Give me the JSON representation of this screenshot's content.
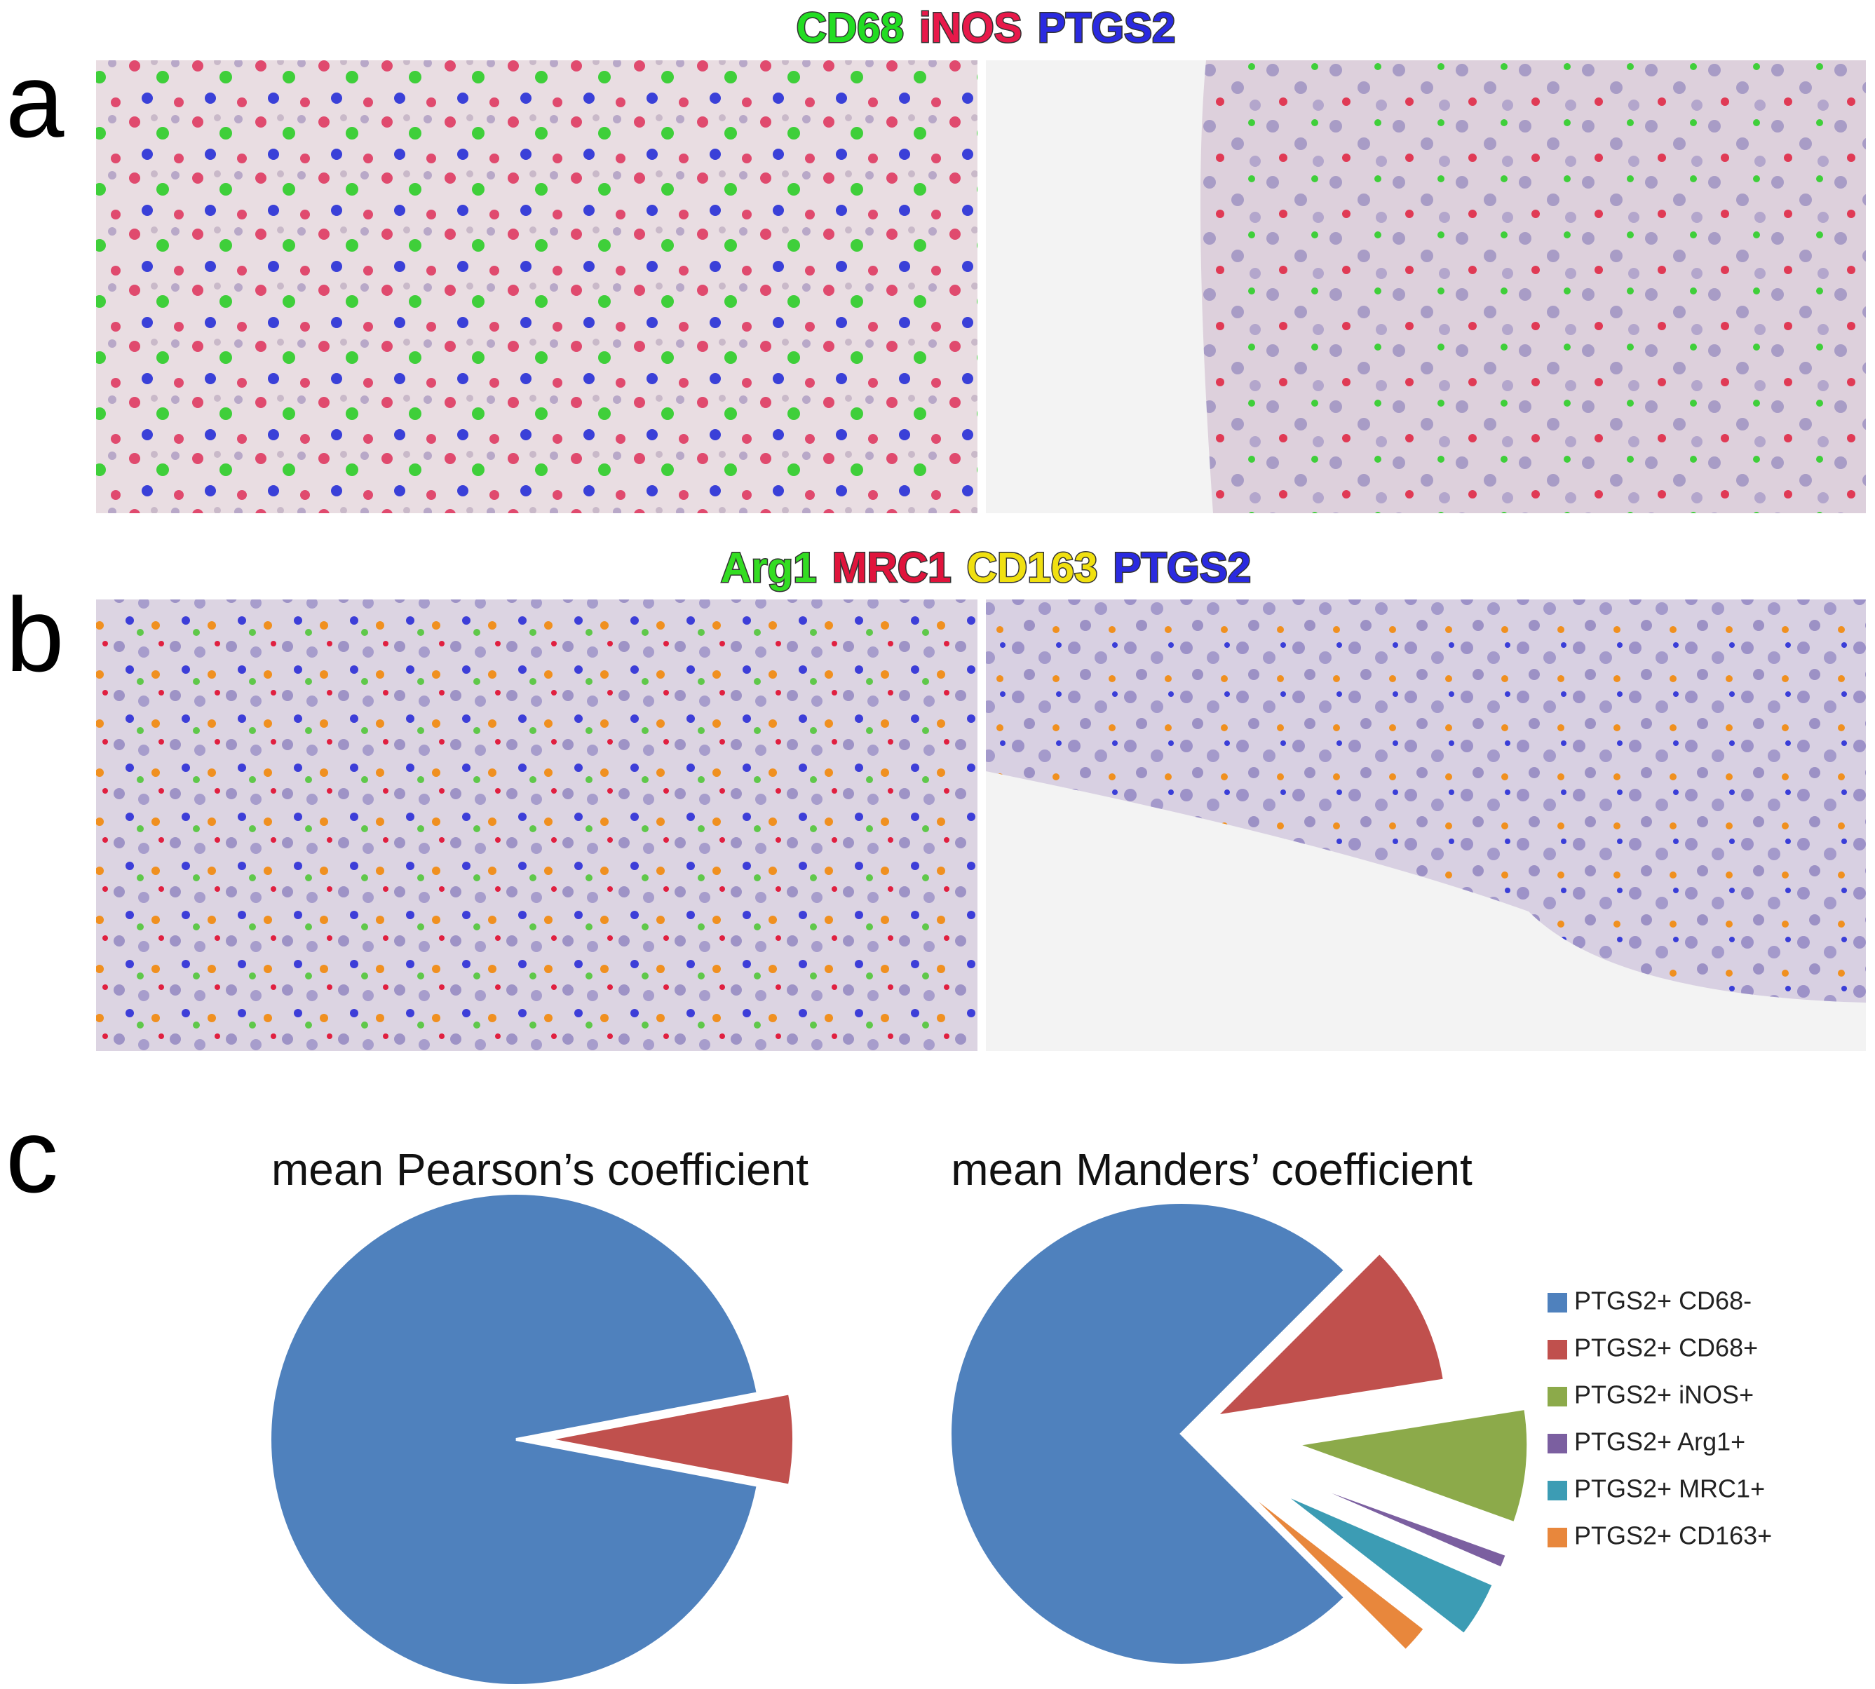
{
  "panels": {
    "a": {
      "label": "a",
      "stains": [
        {
          "text": "CD68",
          "color": "#22dd22"
        },
        {
          "text": "iNOS",
          "color": "#e8194a"
        },
        {
          "text": "PTGS2",
          "color": "#2a2ae0"
        }
      ]
    },
    "b": {
      "label": "b",
      "stains": [
        {
          "text": "Arg1",
          "color": "#33dd22"
        },
        {
          "text": "MRC1",
          "color": "#e0143c"
        },
        {
          "text": "CD163",
          "color": "#f0e010"
        },
        {
          "text": "PTGS2",
          "color": "#2a2ae0"
        }
      ]
    },
    "c": {
      "label": "c"
    }
  },
  "chart_data": [
    {
      "type": "pie",
      "title": "mean Pearson’s coefficient",
      "values": [
        94,
        6
      ],
      "colors": [
        "#4f81bd",
        "#c0504d"
      ]
    },
    {
      "type": "pie",
      "title": "mean Manders’ coefficient",
      "categories": [
        "PTGS2+ CD68-",
        "PTGS2+ CD68+",
        "PTGS2+ iNOS+",
        "PTGS2+ Arg1+",
        "PTGS2+ MRC1+",
        "PTGS2+ CD163+"
      ],
      "values": [
        75,
        10,
        8,
        1,
        4,
        2
      ],
      "colors": [
        "#4f81bd",
        "#c0504d",
        "#8caa4a",
        "#7b5fa0",
        "#3c9cb4",
        "#e8873c"
      ]
    }
  ]
}
